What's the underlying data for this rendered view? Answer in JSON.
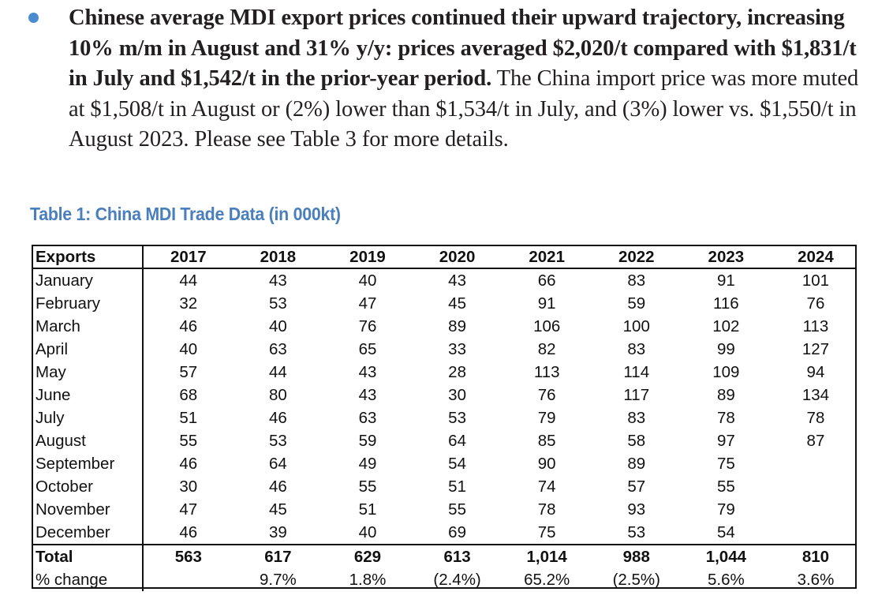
{
  "colors": {
    "bullet": "#4a8ccf",
    "table_title": "#4a7fbd",
    "text": "#231f20"
  },
  "paragraph": {
    "bold_text": "Chinese average MDI export prices continued their upward trajectory, increasing 10% m/m in August and 31% y/y: prices averaged $2,020/t compared with $1,831/t in July and $1,542/t in the prior-year period.",
    "normal_text": " The China import price was more muted at $1,508/t in August or (2%) lower than $1,534/t in July, and (3%) lower vs. $1,550/t in August 2023. Please see Table 3 for more details."
  },
  "table": {
    "title": "Table 1: China MDI Trade Data (in 000kt)",
    "header_label": "Exports",
    "years": [
      "2017",
      "2018",
      "2019",
      "2020",
      "2021",
      "2022",
      "2023",
      "2024"
    ],
    "rows": [
      {
        "label": "January",
        "values": [
          "44",
          "43",
          "40",
          "43",
          "66",
          "83",
          "91",
          "101"
        ]
      },
      {
        "label": "February",
        "values": [
          "32",
          "53",
          "47",
          "45",
          "91",
          "59",
          "116",
          "76"
        ]
      },
      {
        "label": "March",
        "values": [
          "46",
          "40",
          "76",
          "89",
          "106",
          "100",
          "102",
          "113"
        ]
      },
      {
        "label": "April",
        "values": [
          "40",
          "63",
          "65",
          "33",
          "82",
          "83",
          "99",
          "127"
        ]
      },
      {
        "label": "May",
        "values": [
          "57",
          "44",
          "43",
          "28",
          "113",
          "114",
          "109",
          "94"
        ]
      },
      {
        "label": "June",
        "values": [
          "68",
          "80",
          "43",
          "30",
          "76",
          "117",
          "89",
          "134"
        ]
      },
      {
        "label": "July",
        "values": [
          "51",
          "46",
          "63",
          "53",
          "79",
          "83",
          "78",
          "78"
        ]
      },
      {
        "label": "August",
        "values": [
          "55",
          "53",
          "59",
          "64",
          "85",
          "58",
          "97",
          "87"
        ]
      },
      {
        "label": "September",
        "values": [
          "46",
          "64",
          "49",
          "54",
          "90",
          "89",
          "75",
          ""
        ]
      },
      {
        "label": "October",
        "values": [
          "30",
          "46",
          "55",
          "51",
          "74",
          "57",
          "55",
          ""
        ]
      },
      {
        "label": "November",
        "values": [
          "47",
          "45",
          "51",
          "55",
          "78",
          "93",
          "79",
          ""
        ]
      },
      {
        "label": "December",
        "values": [
          "46",
          "39",
          "40",
          "69",
          "75",
          "53",
          "54",
          ""
        ]
      }
    ],
    "total": {
      "label": "Total",
      "values": [
        "563",
        "617",
        "629",
        "613",
        "1,014",
        "988",
        "1,044",
        "810"
      ]
    },
    "change": {
      "label": "% change",
      "values": [
        "",
        "9.7%",
        "1.8%",
        "(2.4%)",
        "65.2%",
        "(2.5%)",
        "5.6%",
        "3.6%"
      ]
    }
  }
}
